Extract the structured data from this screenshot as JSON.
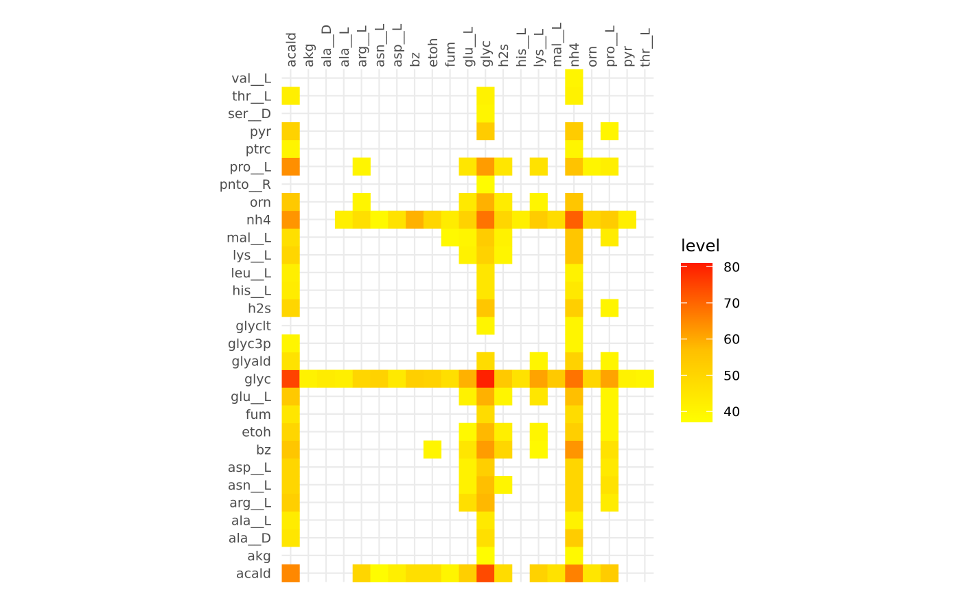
{
  "chart_data": {
    "type": "heatmap",
    "x_categories": [
      "acald",
      "akg",
      "ala__D",
      "ala__L",
      "arg__L",
      "asn__L",
      "asp__L",
      "bz",
      "etoh",
      "fum",
      "glu__L",
      "glyc",
      "h2s",
      "his__L",
      "lys__L",
      "mal__L",
      "nh4",
      "orn",
      "pro__L",
      "pyr",
      "thr__L"
    ],
    "y_categories": [
      "acald",
      "akg",
      "ala__D",
      "ala__L",
      "arg__L",
      "asn__L",
      "asp__L",
      "bz",
      "etoh",
      "fum",
      "glu__L",
      "glyc",
      "glyald",
      "glyc3p",
      "glyclt",
      "h2s",
      "his__L",
      "leu__L",
      "lys__L",
      "mal__L",
      "nh4",
      "orn",
      "pnto__R",
      "pro__L",
      "ptrc",
      "pyr",
      "ser__D",
      "thr__L",
      "val__L"
    ],
    "cells": [
      {
        "x": "acald",
        "y": "acald",
        "value": 65
      },
      {
        "x": "arg__L",
        "y": "acald",
        "value": 50
      },
      {
        "x": "asn__L",
        "y": "acald",
        "value": 38
      },
      {
        "x": "asp__L",
        "y": "acald",
        "value": 42
      },
      {
        "x": "bz",
        "y": "acald",
        "value": 47
      },
      {
        "x": "etoh",
        "y": "acald",
        "value": 47
      },
      {
        "x": "fum",
        "y": "acald",
        "value": 40
      },
      {
        "x": "glu__L",
        "y": "acald",
        "value": 52
      },
      {
        "x": "glyc",
        "y": "acald",
        "value": 74
      },
      {
        "x": "h2s",
        "y": "acald",
        "value": 48
      },
      {
        "x": "lys__L",
        "y": "acald",
        "value": 51
      },
      {
        "x": "mal__L",
        "y": "acald",
        "value": 46
      },
      {
        "x": "nh4",
        "y": "acald",
        "value": 66
      },
      {
        "x": "orn",
        "y": "acald",
        "value": 45
      },
      {
        "x": "pro__L",
        "y": "acald",
        "value": 53
      },
      {
        "x": "glyc",
        "y": "akg",
        "value": 38
      },
      {
        "x": "nh4",
        "y": "akg",
        "value": 39
      },
      {
        "x": "acald",
        "y": "ala__D",
        "value": 45
      },
      {
        "x": "glyc",
        "y": "ala__D",
        "value": 47
      },
      {
        "x": "nh4",
        "y": "ala__D",
        "value": 53
      },
      {
        "x": "acald",
        "y": "ala__L",
        "value": 43
      },
      {
        "x": "glyc",
        "y": "ala__L",
        "value": 44
      },
      {
        "x": "nh4",
        "y": "ala__L",
        "value": 41
      },
      {
        "x": "acald",
        "y": "arg__L",
        "value": 52
      },
      {
        "x": "glu__L",
        "y": "arg__L",
        "value": 47
      },
      {
        "x": "glyc",
        "y": "arg__L",
        "value": 58
      },
      {
        "x": "nh4",
        "y": "arg__L",
        "value": 50
      },
      {
        "x": "pro__L",
        "y": "arg__L",
        "value": 43
      },
      {
        "x": "acald",
        "y": "asn__L",
        "value": 50
      },
      {
        "x": "glu__L",
        "y": "asn__L",
        "value": 41
      },
      {
        "x": "glyc",
        "y": "asn__L",
        "value": 57
      },
      {
        "x": "h2s",
        "y": "asn__L",
        "value": 40
      },
      {
        "x": "nh4",
        "y": "asn__L",
        "value": 50
      },
      {
        "x": "pro__L",
        "y": "asn__L",
        "value": 46
      },
      {
        "x": "acald",
        "y": "asp__L",
        "value": 50
      },
      {
        "x": "glu__L",
        "y": "asp__L",
        "value": 41
      },
      {
        "x": "glyc",
        "y": "asp__L",
        "value": 52
      },
      {
        "x": "nh4",
        "y": "asp__L",
        "value": 50
      },
      {
        "x": "pro__L",
        "y": "asp__L",
        "value": 44
      },
      {
        "x": "acald",
        "y": "bz",
        "value": 55
      },
      {
        "x": "etoh",
        "y": "bz",
        "value": 40
      },
      {
        "x": "glu__L",
        "y": "bz",
        "value": 45
      },
      {
        "x": "glyc",
        "y": "bz",
        "value": 62
      },
      {
        "x": "h2s",
        "y": "bz",
        "value": 50
      },
      {
        "x": "lys__L",
        "y": "bz",
        "value": 39
      },
      {
        "x": "nh4",
        "y": "bz",
        "value": 63
      },
      {
        "x": "pro__L",
        "y": "bz",
        "value": 46
      },
      {
        "x": "acald",
        "y": "etoh",
        "value": 50
      },
      {
        "x": "glu__L",
        "y": "etoh",
        "value": 39
      },
      {
        "x": "glyc",
        "y": "etoh",
        "value": 58
      },
      {
        "x": "h2s",
        "y": "etoh",
        "value": 42
      },
      {
        "x": "lys__L",
        "y": "etoh",
        "value": 40
      },
      {
        "x": "nh4",
        "y": "etoh",
        "value": 52
      },
      {
        "x": "pro__L",
        "y": "etoh",
        "value": 40
      },
      {
        "x": "acald",
        "y": "fum",
        "value": 45
      },
      {
        "x": "glyc",
        "y": "fum",
        "value": 48
      },
      {
        "x": "nh4",
        "y": "fum",
        "value": 48
      },
      {
        "x": "pro__L",
        "y": "fum",
        "value": 40
      },
      {
        "x": "acald",
        "y": "glu__L",
        "value": 54
      },
      {
        "x": "glu__L",
        "y": "glu__L",
        "value": 41
      },
      {
        "x": "glyc",
        "y": "glu__L",
        "value": 59
      },
      {
        "x": "h2s",
        "y": "glu__L",
        "value": 40
      },
      {
        "x": "lys__L",
        "y": "glu__L",
        "value": 45
      },
      {
        "x": "nh4",
        "y": "glu__L",
        "value": 57
      },
      {
        "x": "pro__L",
        "y": "glu__L",
        "value": 40
      },
      {
        "x": "acald",
        "y": "glyc",
        "value": 75
      },
      {
        "x": "akg",
        "y": "glyc",
        "value": 41
      },
      {
        "x": "ala__D",
        "y": "glyc",
        "value": 43
      },
      {
        "x": "ala__L",
        "y": "glyc",
        "value": 42
      },
      {
        "x": "arg__L",
        "y": "glyc",
        "value": 50
      },
      {
        "x": "asn__L",
        "y": "glyc",
        "value": 51
      },
      {
        "x": "asp__L",
        "y": "glyc",
        "value": 44
      },
      {
        "x": "bz",
        "y": "glyc",
        "value": 52
      },
      {
        "x": "etoh",
        "y": "glyc",
        "value": 51
      },
      {
        "x": "fum",
        "y": "glyc",
        "value": 47
      },
      {
        "x": "glu__L",
        "y": "glyc",
        "value": 59
      },
      {
        "x": "glyc",
        "y": "glyc",
        "value": 80
      },
      {
        "x": "h2s",
        "y": "glyc",
        "value": 54
      },
      {
        "x": "his__L",
        "y": "glyc",
        "value": 46
      },
      {
        "x": "lys__L",
        "y": "glyc",
        "value": 61
      },
      {
        "x": "mal__L",
        "y": "glyc",
        "value": 54
      },
      {
        "x": "nh4",
        "y": "glyc",
        "value": 68
      },
      {
        "x": "orn",
        "y": "glyc",
        "value": 50
      },
      {
        "x": "pro__L",
        "y": "glyc",
        "value": 61
      },
      {
        "x": "pyr",
        "y": "glyc",
        "value": 41
      },
      {
        "x": "thr__L",
        "y": "glyc",
        "value": 40
      },
      {
        "x": "acald",
        "y": "glyald",
        "value": 46
      },
      {
        "x": "glyc",
        "y": "glyald",
        "value": 48
      },
      {
        "x": "lys__L",
        "y": "glyald",
        "value": 40
      },
      {
        "x": "nh4",
        "y": "glyald",
        "value": 51
      },
      {
        "x": "pro__L",
        "y": "glyald",
        "value": 40
      },
      {
        "x": "acald",
        "y": "glyc3p",
        "value": 40
      },
      {
        "x": "nh4",
        "y": "glyc3p",
        "value": 40
      },
      {
        "x": "glyc",
        "y": "glyclt",
        "value": 40
      },
      {
        "x": "nh4",
        "y": "glyclt",
        "value": 40
      },
      {
        "x": "acald",
        "y": "h2s",
        "value": 50
      },
      {
        "x": "glyc",
        "y": "h2s",
        "value": 55
      },
      {
        "x": "nh4",
        "y": "h2s",
        "value": 52
      },
      {
        "x": "pro__L",
        "y": "h2s",
        "value": 40
      },
      {
        "x": "acald",
        "y": "his__L",
        "value": 43
      },
      {
        "x": "glyc",
        "y": "his__L",
        "value": 45
      },
      {
        "x": "nh4",
        "y": "his__L",
        "value": 44
      },
      {
        "x": "acald",
        "y": "leu__L",
        "value": 42
      },
      {
        "x": "glyc",
        "y": "leu__L",
        "value": 45
      },
      {
        "x": "nh4",
        "y": "leu__L",
        "value": 41
      },
      {
        "x": "acald",
        "y": "lys__L",
        "value": 50
      },
      {
        "x": "glu__L",
        "y": "lys__L",
        "value": 41
      },
      {
        "x": "glyc",
        "y": "lys__L",
        "value": 51
      },
      {
        "x": "h2s",
        "y": "lys__L",
        "value": 40
      },
      {
        "x": "nh4",
        "y": "lys__L",
        "value": 55
      },
      {
        "x": "acald",
        "y": "mal__L",
        "value": 47
      },
      {
        "x": "fum",
        "y": "mal__L",
        "value": 39
      },
      {
        "x": "glu__L",
        "y": "mal__L",
        "value": 40
      },
      {
        "x": "glyc",
        "y": "mal__L",
        "value": 53
      },
      {
        "x": "h2s",
        "y": "mal__L",
        "value": 41
      },
      {
        "x": "nh4",
        "y": "mal__L",
        "value": 55
      },
      {
        "x": "pro__L",
        "y": "mal__L",
        "value": 43
      },
      {
        "x": "acald",
        "y": "nh4",
        "value": 63
      },
      {
        "x": "ala__L",
        "y": "nh4",
        "value": 42
      },
      {
        "x": "arg__L",
        "y": "nh4",
        "value": 47
      },
      {
        "x": "asn__L",
        "y": "nh4",
        "value": 39
      },
      {
        "x": "asp__L",
        "y": "nh4",
        "value": 46
      },
      {
        "x": "bz",
        "y": "nh4",
        "value": 59
      },
      {
        "x": "etoh",
        "y": "nh4",
        "value": 50
      },
      {
        "x": "fum",
        "y": "nh4",
        "value": 43
      },
      {
        "x": "glu__L",
        "y": "nh4",
        "value": 51
      },
      {
        "x": "glyc",
        "y": "nh4",
        "value": 68
      },
      {
        "x": "h2s",
        "y": "nh4",
        "value": 50
      },
      {
        "x": "his__L",
        "y": "nh4",
        "value": 42
      },
      {
        "x": "lys__L",
        "y": "nh4",
        "value": 53
      },
      {
        "x": "mal__L",
        "y": "nh4",
        "value": 48
      },
      {
        "x": "nh4",
        "y": "nh4",
        "value": 71
      },
      {
        "x": "orn",
        "y": "nh4",
        "value": 50
      },
      {
        "x": "pro__L",
        "y": "nh4",
        "value": 53
      },
      {
        "x": "pyr",
        "y": "nh4",
        "value": 42
      },
      {
        "x": "acald",
        "y": "orn",
        "value": 54
      },
      {
        "x": "arg__L",
        "y": "orn",
        "value": 40
      },
      {
        "x": "glu__L",
        "y": "orn",
        "value": 44
      },
      {
        "x": "glyc",
        "y": "orn",
        "value": 59
      },
      {
        "x": "h2s",
        "y": "orn",
        "value": 43
      },
      {
        "x": "lys__L",
        "y": "orn",
        "value": 40
      },
      {
        "x": "nh4",
        "y": "orn",
        "value": 55
      },
      {
        "x": "glyc",
        "y": "pnto__R",
        "value": 38
      },
      {
        "x": "acald",
        "y": "pro__L",
        "value": 64
      },
      {
        "x": "arg__L",
        "y": "pro__L",
        "value": 40
      },
      {
        "x": "glu__L",
        "y": "pro__L",
        "value": 45
      },
      {
        "x": "glyc",
        "y": "pro__L",
        "value": 62
      },
      {
        "x": "h2s",
        "y": "pro__L",
        "value": 45
      },
      {
        "x": "lys__L",
        "y": "pro__L",
        "value": 46
      },
      {
        "x": "nh4",
        "y": "pro__L",
        "value": 56
      },
      {
        "x": "orn",
        "y": "pro__L",
        "value": 40
      },
      {
        "x": "pro__L",
        "y": "pro__L",
        "value": 42
      },
      {
        "x": "acald",
        "y": "ptrc",
        "value": 40
      },
      {
        "x": "nh4",
        "y": "ptrc",
        "value": 40
      },
      {
        "x": "acald",
        "y": "pyr",
        "value": 51
      },
      {
        "x": "glyc",
        "y": "pyr",
        "value": 53
      },
      {
        "x": "nh4",
        "y": "pyr",
        "value": 53
      },
      {
        "x": "pro__L",
        "y": "pyr",
        "value": 40
      },
      {
        "x": "glyc",
        "y": "ser__D",
        "value": 40
      },
      {
        "x": "acald",
        "y": "thr__L",
        "value": 42
      },
      {
        "x": "glyc",
        "y": "thr__L",
        "value": 41
      },
      {
        "x": "nh4",
        "y": "thr__L",
        "value": 41
      },
      {
        "x": "nh4",
        "y": "val__L",
        "value": 40
      }
    ],
    "legend": {
      "title": "level",
      "min": 37,
      "max": 81,
      "ticks": [
        40,
        50,
        60,
        70,
        80
      ],
      "low_color": "#FFFF00",
      "mid_color": "#FFC000",
      "high_color": "#FF1A00",
      "placement": "right"
    },
    "grid": true,
    "grid_color": "#EBEBEB",
    "xlabel": "",
    "ylabel": ""
  }
}
